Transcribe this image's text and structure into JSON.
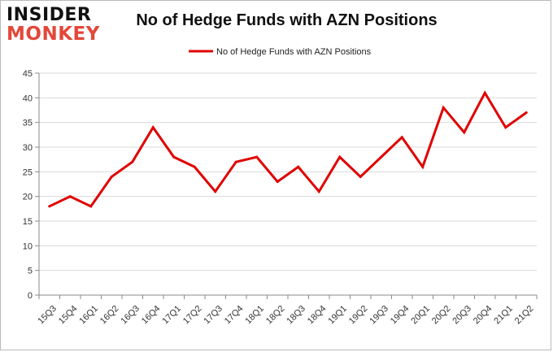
{
  "logo": {
    "line1": "INSIDER",
    "line2": "MONKEY"
  },
  "chart_data": {
    "type": "line",
    "title": "No of Hedge Funds with AZN Positions",
    "xlabel": "",
    "ylabel": "",
    "categories": [
      "15Q3",
      "15Q4",
      "16Q1",
      "16Q2",
      "16Q3",
      "16Q4",
      "17Q1",
      "17Q2",
      "17Q3",
      "17Q4",
      "18Q1",
      "18Q2",
      "18Q3",
      "18Q4",
      "19Q1",
      "19Q2",
      "19Q3",
      "19Q4",
      "20Q1",
      "20Q2",
      "20Q3",
      "20Q4",
      "21Q1",
      "21Q2"
    ],
    "series": [
      {
        "name": "No of Hedge Funds with AZN Positions",
        "color": "#e00000",
        "values": [
          18,
          20,
          18,
          24,
          27,
          34,
          28,
          26,
          21,
          27,
          28,
          23,
          26,
          21,
          28,
          24,
          28,
          32,
          26,
          38,
          33,
          41,
          34,
          37
        ]
      }
    ],
    "ylim": [
      0,
      45
    ],
    "yticks": [
      0,
      5,
      10,
      15,
      20,
      25,
      30,
      35,
      40,
      45
    ],
    "grid": true,
    "legend": "top-center"
  }
}
